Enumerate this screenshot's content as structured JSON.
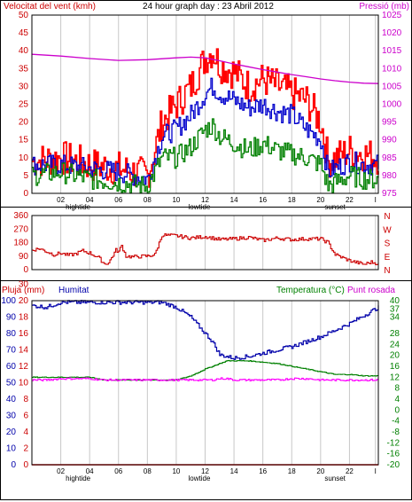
{
  "header": {
    "left": "Velocitat del vent (kmh)",
    "center": "24 hour graph day : 23 Abril 2012",
    "right": "Pressió (mb)"
  },
  "panel3_labels": {
    "rain": "Pluja (mm)",
    "humidity": "Humitat",
    "temp": "Temperatura (°C)",
    "dew": "Punt rosada"
  },
  "x_ticks": [
    "02",
    "04",
    "06",
    "08",
    "10",
    "12",
    "14",
    "16",
    "18",
    "20",
    "22",
    "I"
  ],
  "x_annotations": [
    "hightide",
    "lowtide",
    "sunset"
  ],
  "colors": {
    "wind_gust": "#ff0000",
    "wind_avg": "#0000cc",
    "wind_low": "#008000",
    "pressure": "#cc00cc",
    "direction": "#cc0000",
    "humidity": "#0000aa",
    "temperature": "#008000",
    "dewpoint": "#ff00ff",
    "rain": "#ff0000"
  },
  "chart_data": [
    {
      "type": "line",
      "x": [
        0,
        2,
        4,
        6,
        8,
        9,
        10,
        11,
        12,
        12.5,
        13,
        14,
        15,
        16,
        17,
        18,
        19,
        20,
        20.5,
        21,
        22,
        23,
        24
      ],
      "xlim": [
        0,
        24
      ],
      "ylim": [
        0,
        50
      ],
      "y2lim": [
        975,
        1025
      ],
      "yticks": [
        0,
        5,
        10,
        15,
        20,
        25,
        30,
        35,
        40,
        45,
        50
      ],
      "y2ticks": [
        975,
        980,
        985,
        990,
        995,
        1000,
        1005,
        1010,
        1015,
        1020,
        1025
      ],
      "series": [
        {
          "values": [
            9,
            10,
            8,
            7,
            5,
            20,
            25,
            30,
            38,
            40,
            36,
            34,
            30,
            32,
            30,
            28,
            26,
            20,
            9,
            10,
            12,
            11,
            10
          ]
        },
        {
          "values": [
            8,
            8,
            7,
            6,
            4,
            16,
            18,
            22,
            28,
            30,
            28,
            26,
            24,
            25,
            23,
            22,
            18,
            15,
            6,
            7,
            9,
            8,
            8
          ]
        },
        {
          "values": [
            5,
            6,
            4,
            3,
            2,
            10,
            10,
            13,
            18,
            19,
            16,
            14,
            12,
            14,
            12,
            11,
            10,
            8,
            2,
            3,
            5,
            4,
            4
          ]
        }
      ],
      "pressure": {
        "x": [
          0,
          2,
          4,
          6,
          8,
          10,
          11,
          12,
          13,
          14,
          15,
          16,
          17,
          18,
          19,
          20,
          21,
          22,
          23,
          24
        ],
        "values": [
          1014,
          1013.5,
          1012.8,
          1012.3,
          1012.5,
          1013,
          1013.2,
          1013,
          1012.2,
          1011.3,
          1010.5,
          1009.7,
          1009,
          1008.3,
          1007.7,
          1007.1,
          1006.6,
          1006.2,
          1005.9,
          1005.8
        ]
      }
    },
    {
      "type": "line",
      "x": [
        0,
        0.5,
        1,
        1.5,
        2,
        2.5,
        3,
        3.5,
        4,
        4.6,
        5,
        5.3,
        5.8,
        6,
        6.2,
        6.5,
        7,
        8,
        8.5,
        9,
        10,
        11,
        12,
        13,
        14,
        15,
        16,
        17,
        18,
        19,
        20,
        20.5,
        21,
        22,
        23,
        23.5,
        24
      ],
      "xlim": [
        0,
        24
      ],
      "ylim": [
        0,
        360
      ],
      "yticks": [
        0,
        90,
        180,
        270,
        360
      ],
      "side_labels": [
        "N",
        "W",
        "S",
        "E",
        "N"
      ],
      "series": [
        {
          "values": [
            130,
            140,
            120,
            100,
            110,
            95,
            105,
            125,
            110,
            80,
            40,
            45,
            130,
            120,
            160,
            90,
            85,
            90,
            100,
            230,
            225,
            210,
            220,
            200,
            205,
            215,
            195,
            210,
            200,
            205,
            205,
            180,
            100,
            60,
            35,
            50,
            40
          ]
        }
      ]
    },
    {
      "type": "line",
      "x": [
        0,
        1,
        2,
        3,
        4,
        5,
        6,
        7,
        8,
        9,
        10,
        11,
        12,
        12.5,
        13,
        13.5,
        14,
        15,
        16,
        17,
        18,
        19,
        20,
        21,
        22,
        23,
        24
      ],
      "xlim": [
        0,
        24
      ],
      "yticks_temp": [
        -20,
        -16,
        -12,
        -8,
        -4,
        0,
        4,
        8,
        12,
        16,
        20,
        24,
        28,
        34,
        37,
        40
      ],
      "yticks_hum": [
        0,
        10,
        20,
        30,
        40,
        50,
        60,
        70,
        80,
        90,
        100
      ],
      "yticks_rain": [
        0,
        2,
        4,
        6,
        8,
        10,
        12,
        14,
        16,
        18,
        20,
        30
      ],
      "series": [
        {
          "values": [
            97,
            96,
            99,
            99,
            99,
            99,
            99,
            99,
            99,
            99,
            96,
            90,
            80,
            75,
            67,
            66,
            65,
            66,
            68,
            70,
            72,
            75,
            78,
            82,
            86,
            91,
            96
          ]
        },
        {
          "values": [
            12,
            12,
            12,
            12,
            12,
            11,
            11,
            11,
            11,
            11,
            11,
            12.5,
            15,
            16,
            17,
            18,
            18,
            18,
            17.5,
            17,
            16,
            15,
            14,
            13,
            13,
            12.5,
            12.5
          ]
        },
        {
          "values": [
            11,
            11,
            11.5,
            11.5,
            11.5,
            11,
            11,
            11,
            11,
            11,
            11,
            11,
            11,
            11,
            11.5,
            11.5,
            11,
            11,
            11,
            11,
            11.5,
            11.5,
            11,
            11,
            11,
            11,
            11
          ]
        },
        {
          "values": [
            0,
            0,
            0,
            0,
            0,
            0,
            0,
            0,
            0,
            0,
            0,
            0,
            0,
            0,
            0,
            0,
            0,
            0,
            0,
            0,
            0,
            0,
            0,
            0,
            0,
            0,
            0
          ]
        }
      ]
    }
  ]
}
